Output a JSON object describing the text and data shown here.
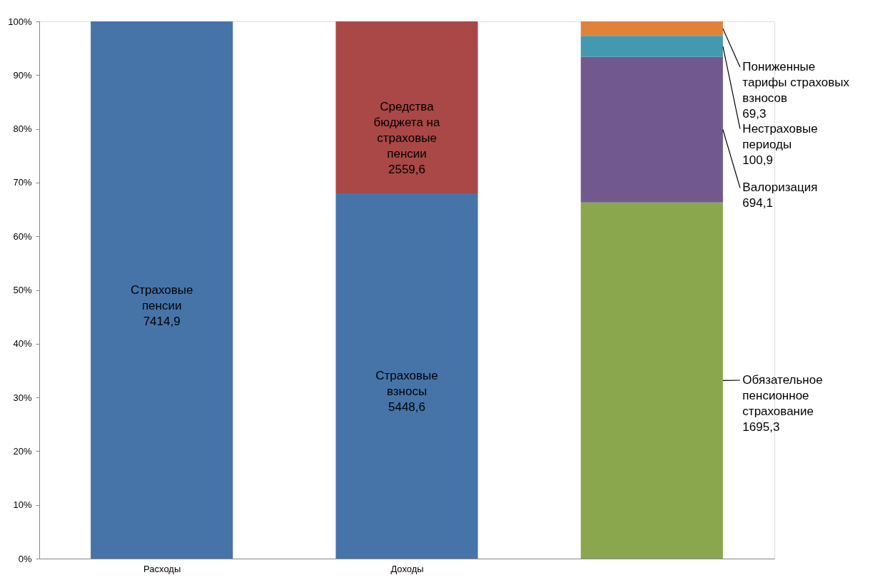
{
  "chart_data": {
    "type": "bar",
    "stacked": true,
    "categories": [
      "Расходы",
      "Доходы",
      null
    ],
    "ylim": [
      0,
      100
    ],
    "yticks": [
      {
        "value": 0,
        "label": "0%"
      },
      {
        "value": 10,
        "label": "10%"
      },
      {
        "value": 20,
        "label": "20%"
      },
      {
        "value": 30,
        "label": "30%"
      },
      {
        "value": 40,
        "label": "40%"
      },
      {
        "value": 50,
        "label": "50%"
      },
      {
        "value": 60,
        "label": "60%"
      },
      {
        "value": 70,
        "label": "70%"
      },
      {
        "value": 80,
        "label": "80%"
      },
      {
        "value": 90,
        "label": "90%"
      },
      {
        "value": 100,
        "label": "100%"
      }
    ],
    "grid": false,
    "series": [
      {
        "color": "#4674a8",
        "values": [
          100,
          68.0,
          null
        ],
        "value_labels": [
          "Страховые\nпенсии\n7414,9",
          "Страховые\nвзносы\n5448,6",
          null
        ]
      },
      {
        "color": "#a94846",
        "values": [
          null,
          32.0,
          null
        ],
        "value_labels": [
          null,
          "Средства\nбюджета на\nстраховые\nпенсии\n2559,6",
          null
        ]
      },
      {
        "color": "#8aa74e",
        "values": [
          null,
          null,
          66.3
        ],
        "value_labels": [
          null,
          null,
          "Обязательное\nпенсионное\nстрахование\n1695,3"
        ]
      },
      {
        "color": "#71598f",
        "values": [
          null,
          null,
          27.1
        ],
        "value_labels": [
          null,
          null,
          "Валоризация\n694,1"
        ]
      },
      {
        "color": "#4399b0",
        "values": [
          null,
          null,
          3.9
        ],
        "value_labels": [
          null,
          null,
          "Нестраховые\nпериоды\n100,9"
        ]
      },
      {
        "color": "#e0833a",
        "values": [
          null,
          null,
          2.7
        ],
        "value_labels": [
          null,
          null,
          "Пониженные\nтарифы страховых\nвзносов\n69,3"
        ]
      }
    ]
  }
}
